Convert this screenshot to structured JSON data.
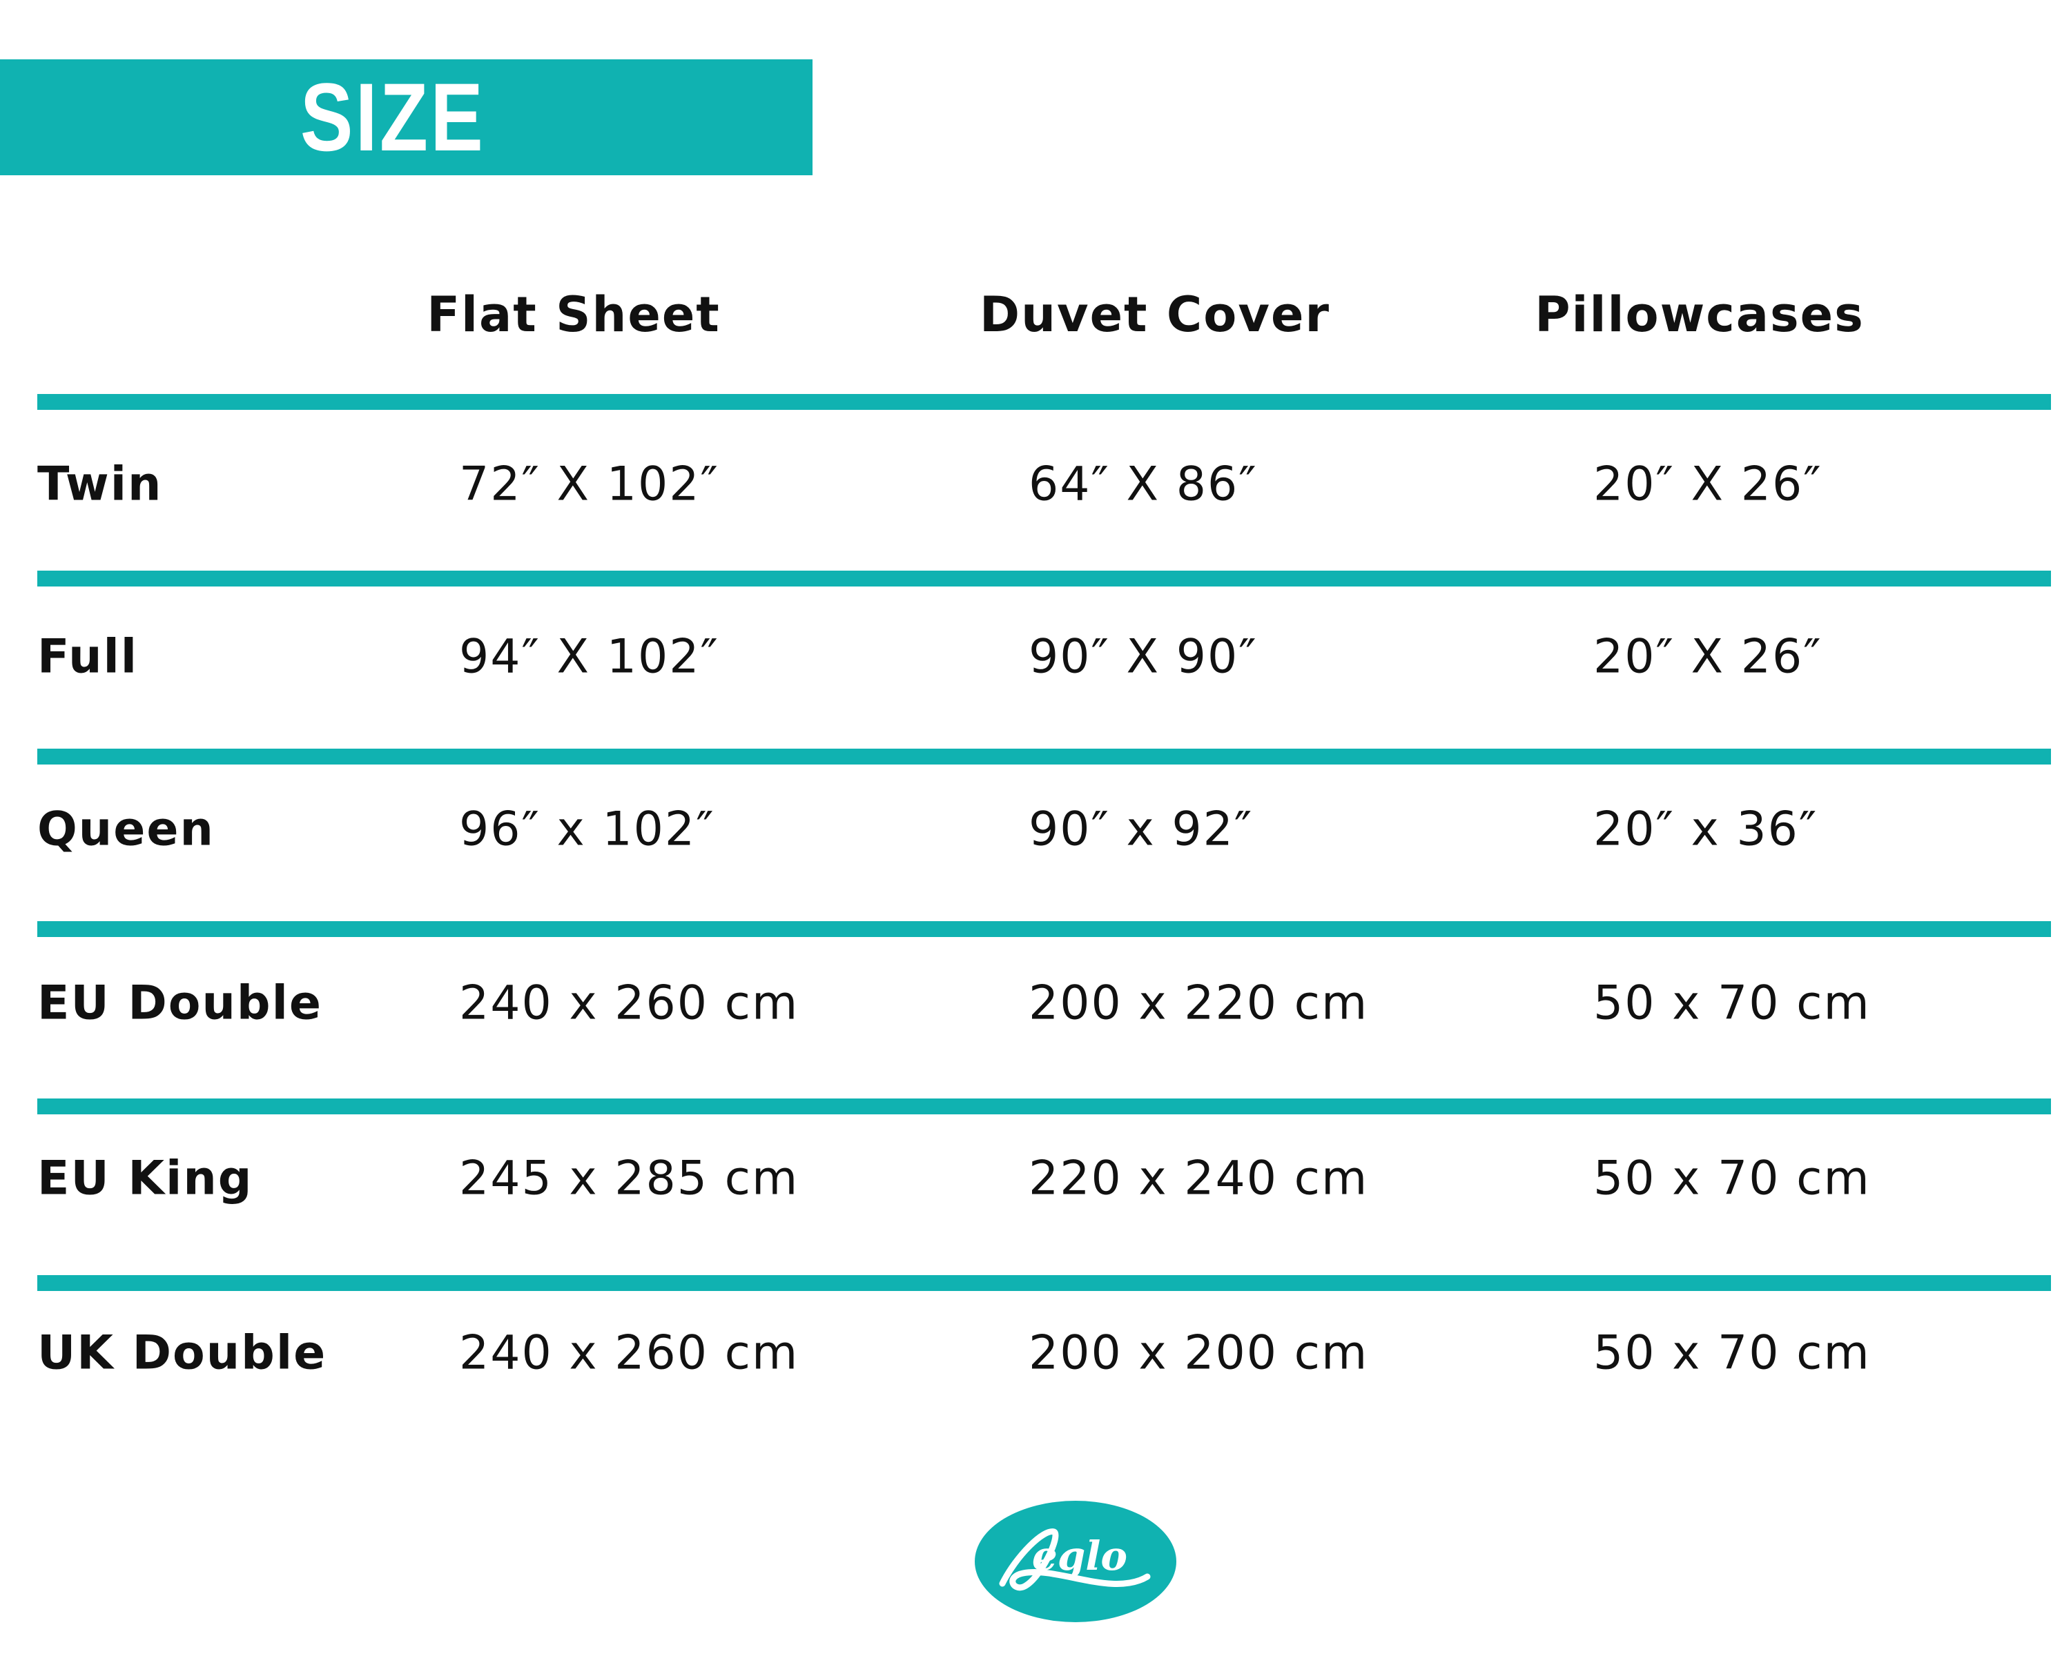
{
  "title": "SIZE",
  "columns": [
    "Flat Sheet",
    "Duvet Cover",
    "Pillowcases"
  ],
  "rows": [
    {
      "label": "Twin",
      "values": [
        "72″ X 102″",
        "64″ X 86″",
        "20″ X 26″"
      ]
    },
    {
      "label": "Full",
      "values": [
        "94″ X 102″",
        "90″ X 90″",
        "20″ X 26″"
      ]
    },
    {
      "label": "Queen",
      "values": [
        "96″ x 102″",
        "90″ x 92″",
        "20″ x 36″"
      ]
    },
    {
      "label": "EU Double",
      "values": [
        "240 x 260 cm",
        "200 x 220 cm",
        "50 x 70 cm"
      ]
    },
    {
      "label": "EU King",
      "values": [
        "245 x 285 cm",
        "220 x 240 cm",
        "50 x 70 cm"
      ]
    },
    {
      "label": "UK Double",
      "values": [
        "240 x 260 cm",
        "200 x 200 cm",
        "50 x 70 cm"
      ]
    }
  ],
  "brand": {
    "logo_text": "Leglo",
    "color": "#10b2b1"
  }
}
